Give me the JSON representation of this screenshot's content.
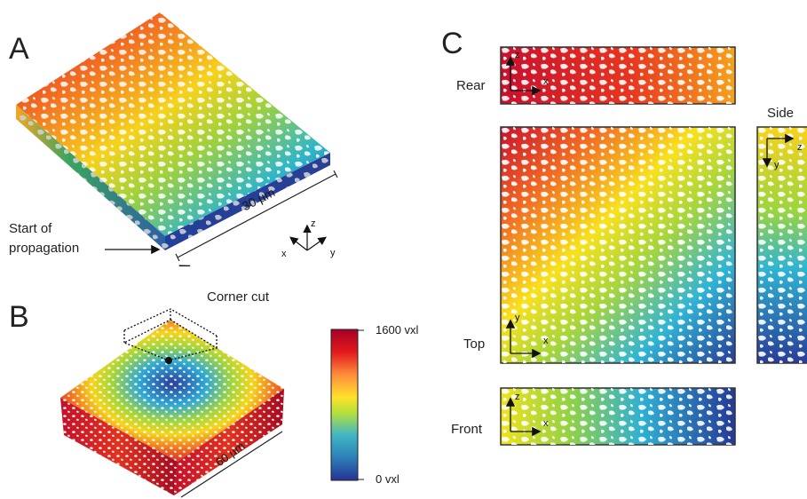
{
  "panels": {
    "a": "A",
    "b": "B",
    "c": "C"
  },
  "panel_a": {
    "dimension": "30 µm",
    "start_label_line1": "Start of",
    "start_label_line2": "propagation",
    "axes": {
      "x": "x",
      "y": "y",
      "z": "z"
    },
    "corner_cut": "Corner cut"
  },
  "panel_b": {
    "dimension": "60 µm"
  },
  "colorbar": {
    "max_label": "1600 vxl",
    "min_label": "0 vxl",
    "colors": [
      "#a50026",
      "#e31a1c",
      "#fd8d3c",
      "#fee12b",
      "#b8e03a",
      "#41b6c4",
      "#2c7fb8",
      "#253494"
    ]
  },
  "panel_c": {
    "rear": {
      "label": "Rear",
      "ax1": "z",
      "ax2": "x"
    },
    "top": {
      "label": "Top",
      "ax1": "y",
      "ax2": "x"
    },
    "front": {
      "label": "Front",
      "ax1": "z",
      "ax2": "x"
    },
    "side": {
      "label": "Side",
      "ax1": "z",
      "ax2": "y"
    }
  }
}
